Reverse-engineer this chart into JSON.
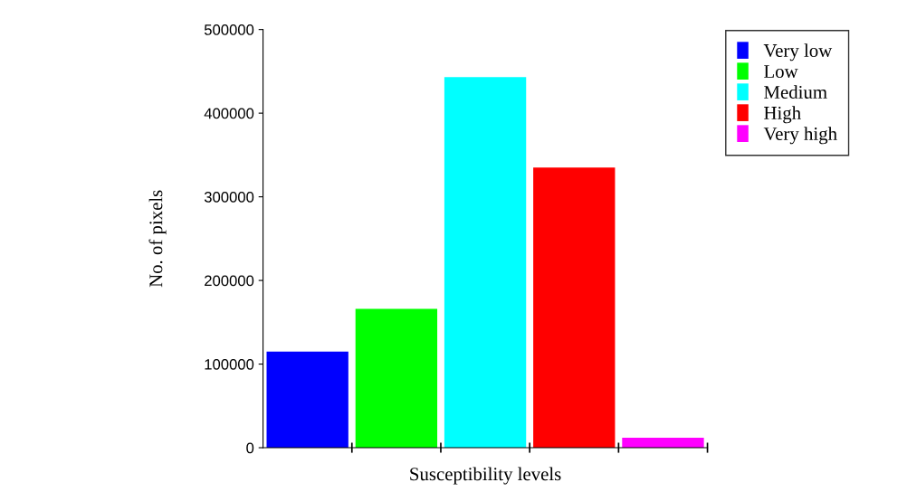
{
  "chart_data": {
    "type": "bar",
    "xlabel": "Susceptibility levels",
    "ylabel": "No. of pixels",
    "categories": [
      null,
      null,
      null,
      null,
      null
    ],
    "series": [
      {
        "name": "Very low",
        "color": "#0000ff",
        "values": [
          115000,
          null,
          null,
          null,
          null
        ]
      },
      {
        "name": "Low",
        "color": "#00ff00",
        "values": [
          null,
          166000,
          null,
          null,
          null
        ]
      },
      {
        "name": "Medium",
        "color": "#00ffff",
        "values": [
          null,
          null,
          443000,
          null,
          null
        ]
      },
      {
        "name": "High",
        "color": "#ff0000",
        "values": [
          null,
          null,
          null,
          335000,
          null
        ]
      },
      {
        "name": "Very high",
        "color": "#ff00ff",
        "values": [
          null,
          null,
          null,
          null,
          12000
        ]
      }
    ],
    "ylim": [
      0,
      500000
    ],
    "yticks": [
      0,
      100000,
      200000,
      300000,
      400000,
      500000
    ],
    "grid": false,
    "legend": "top right"
  }
}
